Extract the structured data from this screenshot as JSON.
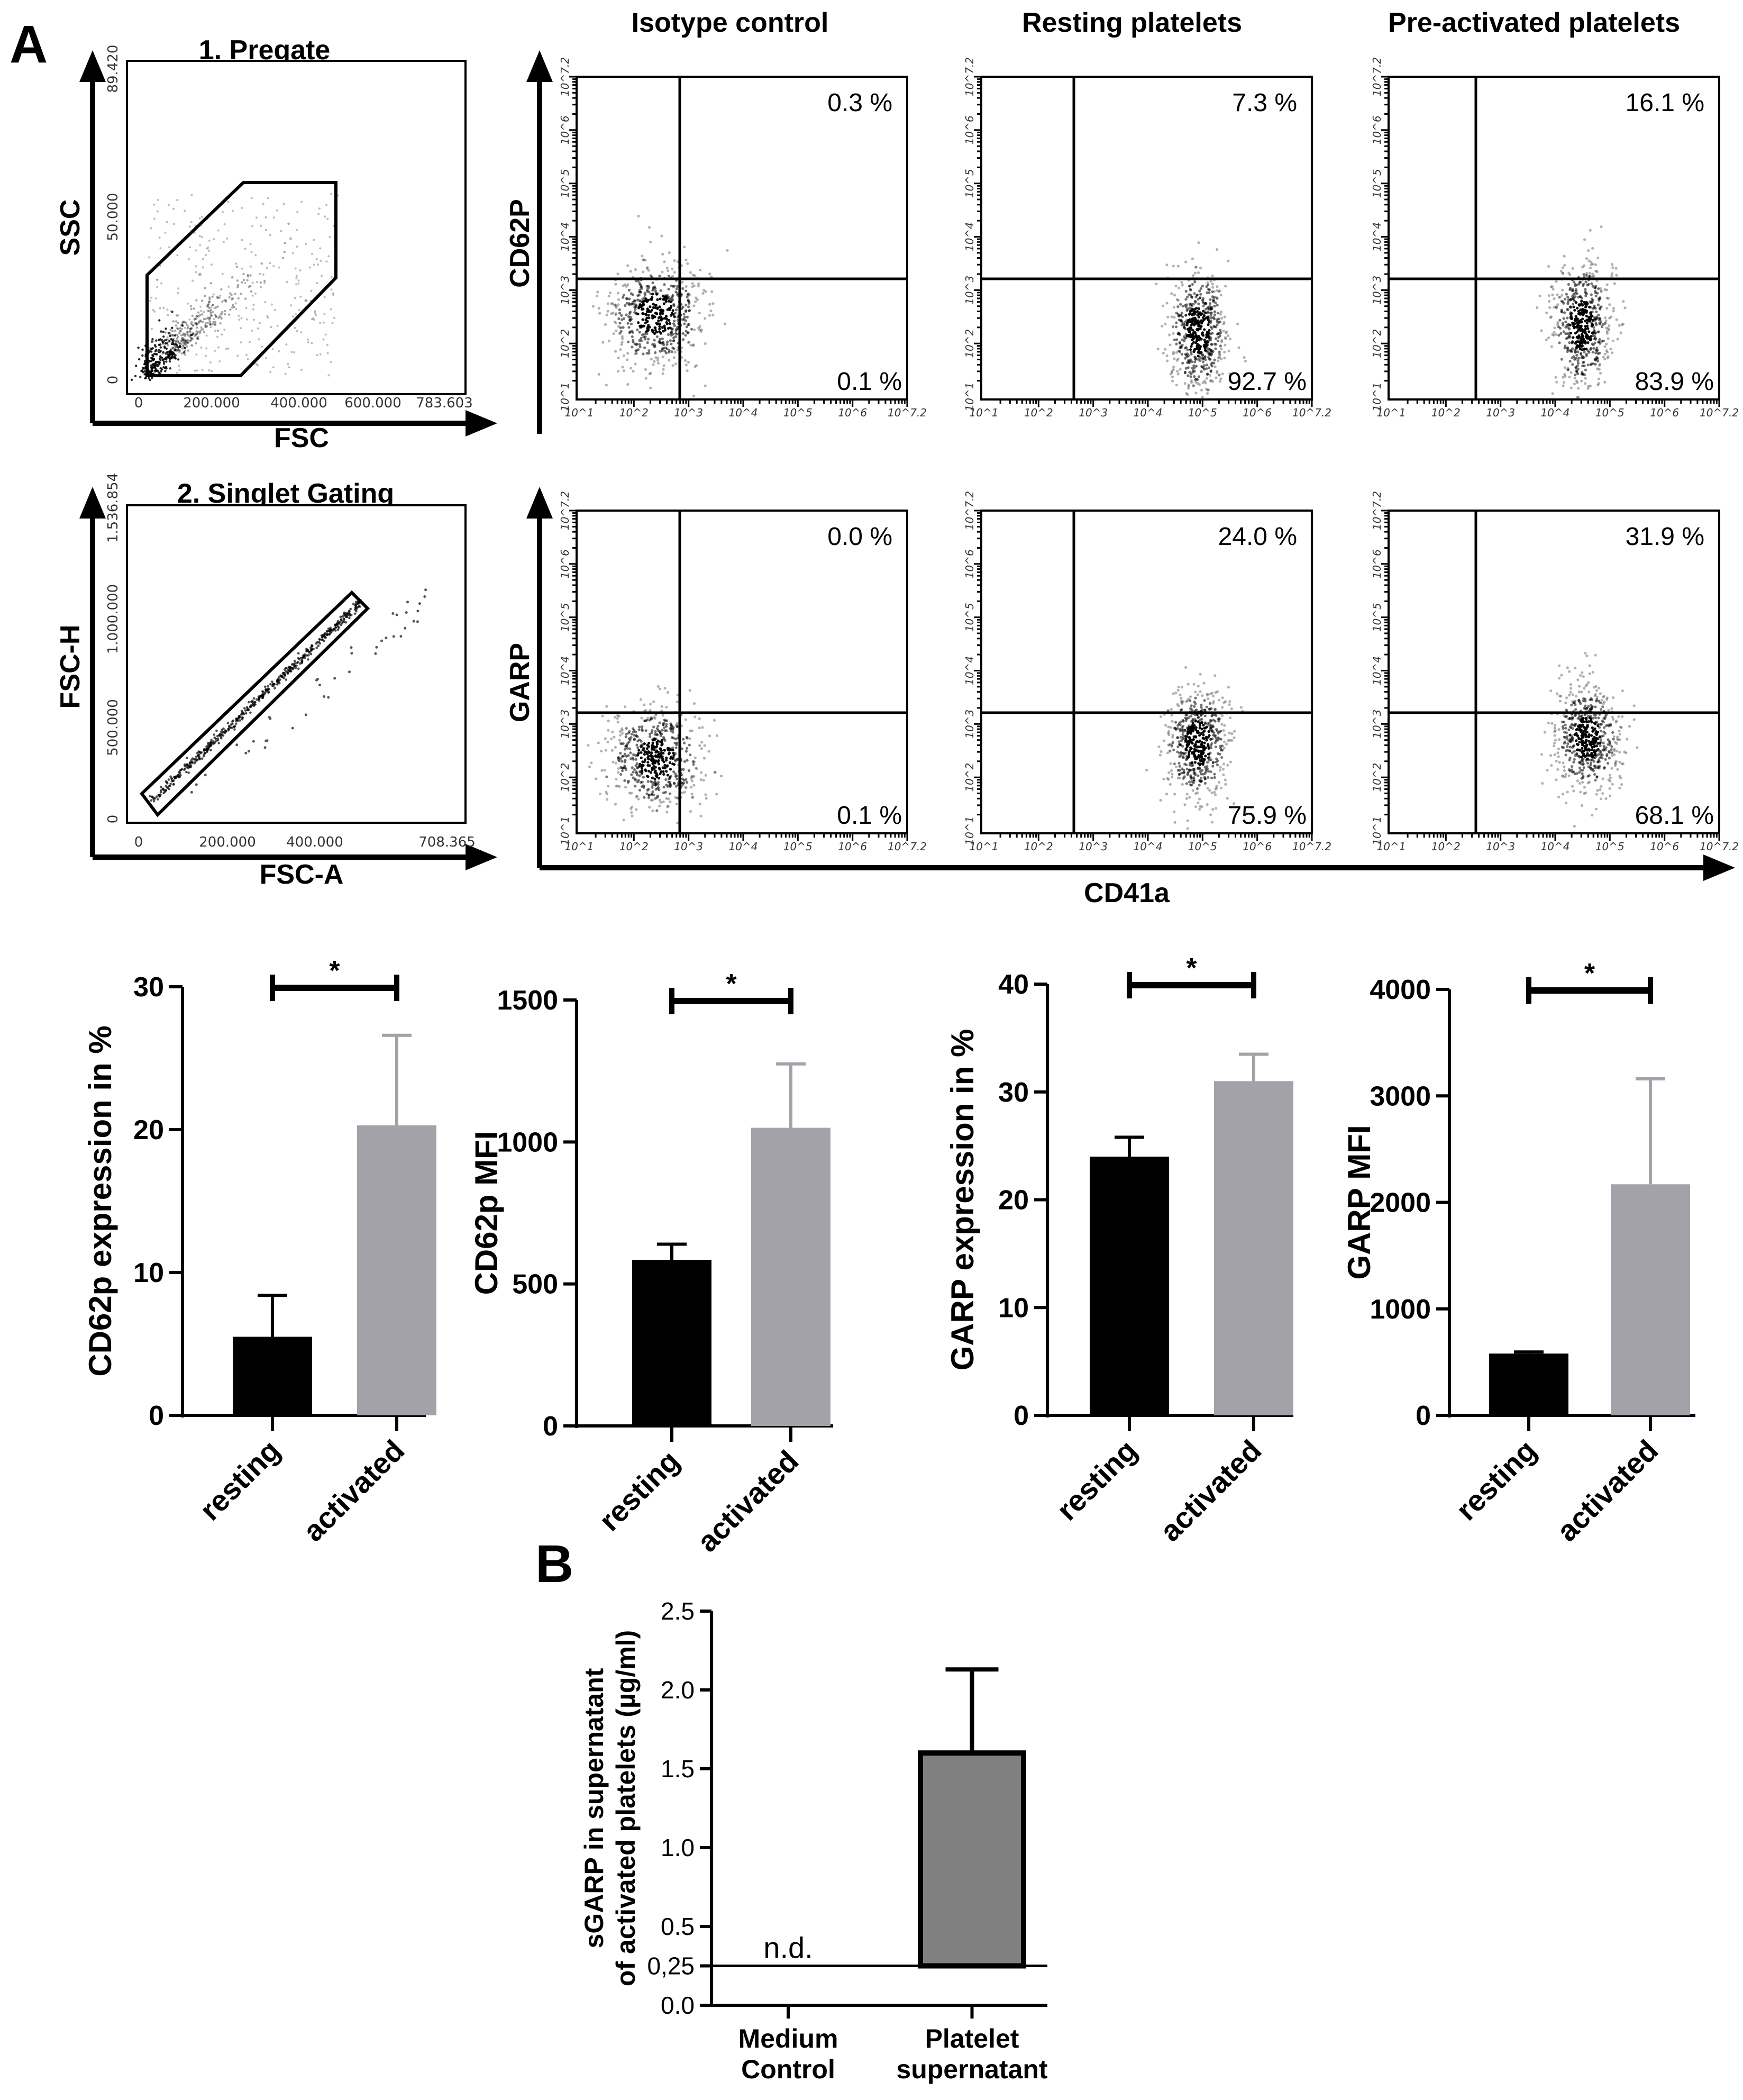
{
  "panel_labels": {
    "a": "A",
    "b": "B"
  },
  "gating": [
    {
      "title": "1. Pregate",
      "xlabel": "FSC",
      "ylabel": "SSC",
      "xticks": [
        "0",
        "200.000",
        "400.000",
        "600.000",
        "783.603"
      ],
      "yticks": [
        "0",
        "50.000",
        "89.420"
      ]
    },
    {
      "title": "2. Singlet Gating",
      "xlabel": "FSC-A",
      "ylabel": "FSC-H",
      "xticks": [
        "0",
        "200.000",
        "400.000",
        "708.365"
      ],
      "yticks": [
        "0",
        "500.000",
        "1.000.000",
        "1.536.854"
      ]
    }
  ],
  "flow": {
    "columns": [
      "Isotype control",
      "Resting platelets",
      "Pre-activated platelets"
    ],
    "rows": [
      {
        "ylabel": "CD62P",
        "upper": [
          "0.3 %",
          "7.3 %",
          "16.1 %"
        ],
        "lower": [
          "0.1 %",
          "92.7 %",
          "83.9 %"
        ]
      },
      {
        "ylabel": "GARP",
        "upper": [
          "0.0 %",
          "24.0 %",
          "31.9 %"
        ],
        "lower": [
          "0.1 %",
          "75.9 %",
          "68.1 %"
        ]
      }
    ],
    "xlabel": "CD41a",
    "log_ticks": [
      "10^1",
      "10^2",
      "10^3",
      "10^4",
      "10^5",
      "10^6",
      "10^7.2"
    ]
  },
  "chart_data": [
    {
      "type": "bar",
      "categories": [
        "resting",
        "activated"
      ],
      "values": [
        5.5,
        20.3
      ],
      "errors": [
        2.9,
        6.3
      ],
      "ylabel": "CD62p expression in %",
      "ylim": [
        0,
        30
      ],
      "yticks": [
        0,
        10,
        20,
        30
      ],
      "significance": "*",
      "colors": [
        "#000000",
        "#a3a2a8"
      ]
    },
    {
      "type": "bar",
      "categories": [
        "resting",
        "activated"
      ],
      "values": [
        585,
        1050
      ],
      "errors": [
        55,
        225
      ],
      "ylabel": "CD62p MFI",
      "ylim": [
        0,
        1500
      ],
      "yticks": [
        0,
        500,
        1000,
        1500
      ],
      "significance": "*",
      "colors": [
        "#000000",
        "#a3a2a8"
      ]
    },
    {
      "type": "bar",
      "categories": [
        "resting",
        "activated"
      ],
      "values": [
        24,
        31
      ],
      "errors": [
        1.8,
        2.5
      ],
      "ylabel": "GARP expression in %",
      "ylim": [
        0,
        40
      ],
      "yticks": [
        0,
        10,
        20,
        30,
        40
      ],
      "significance": "*",
      "colors": [
        "#000000",
        "#a3a2a8"
      ]
    },
    {
      "type": "bar",
      "categories": [
        "resting",
        "activated"
      ],
      "values": [
        580,
        2170
      ],
      "errors": [
        15,
        990
      ],
      "ylabel": "GARP MFI",
      "ylim": [
        0,
        4000
      ],
      "yticks": [
        0,
        1000,
        2000,
        3000,
        4000
      ],
      "significance": "*",
      "colors": [
        "#000000",
        "#a3a2a8"
      ]
    },
    {
      "type": "bar",
      "categories": [
        "Medium Control",
        "Platelet supernatant"
      ],
      "category_lines": [
        [
          "Medium",
          "Control"
        ],
        [
          "Platelet",
          "supernatant"
        ]
      ],
      "values": [
        null,
        1.6
      ],
      "errors": [
        null,
        0.53
      ],
      "annotations": [
        "n.d.",
        ""
      ],
      "ylabel_lines": [
        "sGARP in supernatant",
        "of activated platelets (µg/ml)"
      ],
      "ylim": [
        0,
        2.5
      ],
      "yticks": [
        0.0,
        0.5,
        1.0,
        1.5,
        2.0,
        2.5
      ],
      "ytick_labels": [
        "0.0",
        "0.5",
        "1.0",
        "1.5",
        "2.0",
        "2.5"
      ],
      "detection_limit": 0.25,
      "detection_limit_label": "0,25",
      "colors": [
        "#ffffff",
        "#808080"
      ]
    }
  ]
}
